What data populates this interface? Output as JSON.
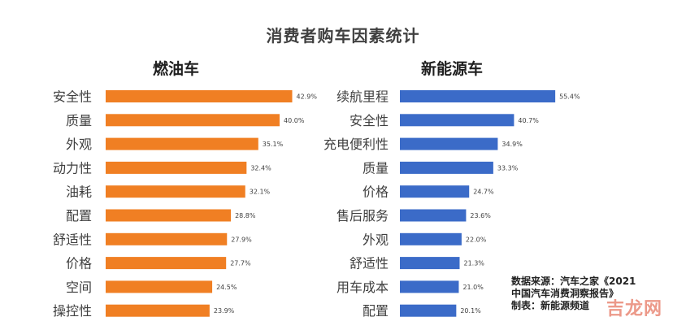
{
  "title": "消费者购车因素统计",
  "source": {
    "line1": "数据来源：汽车之家《2021",
    "line2": "中国汽车消费洞察报告》",
    "line3": "制表：新能源频道"
  },
  "watermark_text": "吉龙网",
  "colors": {
    "fuel": "#f07f23",
    "ev": "#3b6bc8"
  },
  "chart_data": [
    {
      "type": "bar",
      "orientation": "horizontal",
      "title": "燃油车",
      "categories": [
        "安全性",
        "质量",
        "外观",
        "动力性",
        "油耗",
        "配置",
        "舒适性",
        "价格",
        "空间",
        "操控性"
      ],
      "values": [
        42.9,
        40.0,
        35.1,
        32.4,
        32.1,
        28.8,
        27.9,
        27.7,
        24.5,
        23.9
      ],
      "labels": [
        "42.9%",
        "40.0%",
        "35.1%",
        "32.4%",
        "32.1%",
        "28.8%",
        "27.9%",
        "27.7%",
        "24.5%",
        "23.9%"
      ],
      "xlim": [
        0,
        45
      ],
      "grid": false,
      "legend": false
    },
    {
      "type": "bar",
      "orientation": "horizontal",
      "title": "新能源车",
      "categories": [
        "续航里程",
        "安全性",
        "充电便利性",
        "质量",
        "价格",
        "售后服务",
        "外观",
        "舒适性",
        "用车成本",
        "配置"
      ],
      "values": [
        55.4,
        40.7,
        34.9,
        33.3,
        24.7,
        23.6,
        22.0,
        21.3,
        21.0,
        20.1
      ],
      "labels": [
        "55.4%",
        "40.7%",
        "34.9%",
        "33.3%",
        "24.7%",
        "23.6%",
        "22.0%",
        "21.3%",
        "21.0%",
        "20.1%"
      ],
      "xlim": [
        0,
        58
      ],
      "grid": false,
      "legend": false
    }
  ]
}
